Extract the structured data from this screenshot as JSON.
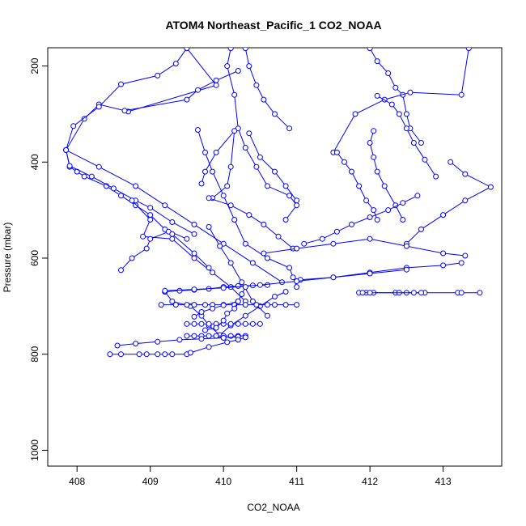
{
  "chart_data": {
    "type": "line",
    "title": "ATOM4 Northeast_Pacific_1 CO2_NOAA",
    "xlabel": "CO2_NOAA",
    "ylabel": "Pressure (mbar)",
    "xlim": [
      407.6,
      413.8
    ],
    "ylim": [
      1033,
      162
    ],
    "y_reversed": true,
    "x_ticks": [
      408,
      409,
      410,
      411,
      412,
      413
    ],
    "y_ticks": [
      200,
      400,
      600,
      800,
      1000
    ],
    "color": "#0000ff",
    "grid": false,
    "series": [
      {
        "x": [
          409.5,
          409.9,
          408.7,
          408.3,
          408.1,
          407.85,
          407.9,
          408.0,
          408.1,
          408.4,
          408.6,
          408.8,
          409.0,
          409.2,
          409.5
        ],
        "y": [
          163,
          240,
          295,
          280,
          310,
          375,
          410,
          420,
          430,
          450,
          470,
          490,
          510,
          540,
          560
        ]
      },
      {
        "x": [
          409.5,
          409.35,
          409.1,
          408.6,
          408.3,
          407.95,
          407.85,
          407.9,
          408.2,
          408.5,
          408.8,
          409.0,
          409.3,
          409.6
        ],
        "y": [
          163,
          195,
          220,
          238,
          285,
          325,
          375,
          408,
          430,
          455,
          480,
          495,
          525,
          550
        ]
      },
      {
        "x": [
          408.65,
          409.5,
          409.65,
          409.9,
          410.2
        ],
        "y": [
          293,
          270,
          250,
          230,
          210
        ]
      },
      {
        "x": [
          408.75,
          409.0,
          408.9,
          409.3,
          409.6,
          409.85,
          410.1,
          410.3
        ],
        "y": [
          480,
          520,
          555,
          560,
          600,
          630,
          660,
          690
        ]
      },
      {
        "x": [
          408.6,
          408.75,
          408.95,
          409.0,
          409.25,
          409.3,
          409.6,
          409.8
        ],
        "y": [
          625,
          600,
          580,
          560,
          545,
          550,
          590,
          620
        ]
      },
      {
        "x": [
          407.85,
          408.3,
          408.8,
          409.2,
          409.6,
          410.0,
          410.4,
          410.8
        ],
        "y": [
          375,
          410,
          450,
          490,
          530,
          570,
          610,
          650
        ]
      },
      {
        "x": [
          410.1,
          410.05,
          410.15,
          410.2,
          410.3,
          410.45,
          410.6,
          410.9,
          411.0,
          410.85
        ],
        "y": [
          163,
          200,
          260,
          330,
          370,
          410,
          450,
          470,
          490,
          520
        ]
      },
      {
        "x": [
          409.2,
          409.3,
          409.55,
          409.7,
          409.8,
          409.95,
          410.1,
          410.3,
          410.5,
          410.7,
          410.85
        ],
        "y": [
          670,
          690,
          700,
          720,
          740,
          760,
          740,
          720,
          700,
          680,
          670
        ]
      },
      {
        "x": [
          410.3,
          410.35,
          410.45,
          410.55,
          410.7,
          410.9
        ],
        "y": [
          163,
          200,
          240,
          270,
          300,
          330
        ]
      },
      {
        "x": [
          409.65,
          409.75,
          409.85,
          410.0,
          410.15,
          410.3,
          410.6,
          410.9,
          410.95,
          411.0
        ],
        "y": [
          333,
          380,
          420,
          470,
          520,
          570,
          600,
          620,
          640,
          660
        ]
      },
      {
        "x": [
          409.85,
          410.05,
          410.1,
          410.15,
          409.9,
          409.75,
          409.7
        ],
        "y": [
          475,
          450,
          410,
          335,
          380,
          420,
          445
        ]
      },
      {
        "x": [
          409.8,
          409.95,
          410.1,
          410.25,
          410.4,
          410.6
        ],
        "y": [
          535,
          575,
          610,
          650,
          690,
          720
        ]
      },
      {
        "x": [
          409.8,
          410.1,
          410.35,
          410.55,
          410.75,
          410.95
        ],
        "y": [
          475,
          490,
          510,
          530,
          555,
          580
        ]
      },
      {
        "x": [
          410.35,
          410.5,
          410.7,
          410.85,
          411.0
        ],
        "y": [
          340,
          390,
          420,
          450,
          480
        ]
      },
      {
        "x": [
          412.0,
          412.1,
          412.25,
          412.35,
          412.45,
          412.5,
          412.55,
          412.7
        ],
        "y": [
          163,
          190,
          215,
          245,
          260,
          300,
          330,
          360
        ]
      },
      {
        "x": [
          413.35,
          413.25,
          412.55,
          412.2,
          411.8,
          411.5
        ],
        "y": [
          163,
          260,
          255,
          270,
          300,
          380
        ]
      },
      {
        "x": [
          412.1,
          412.3,
          412.4,
          412.5,
          412.6,
          412.75,
          412.9
        ],
        "y": [
          262,
          280,
          300,
          330,
          360,
          395,
          430
        ]
      },
      {
        "x": [
          412.05,
          412.0,
          412.05,
          412.1,
          412.2,
          412.35,
          412.45
        ],
        "y": [
          335,
          360,
          390,
          420,
          450,
          490,
          520
        ]
      },
      {
        "x": [
          411.55,
          411.65,
          411.75,
          411.85,
          411.95,
          412.05,
          412.1
        ],
        "y": [
          380,
          400,
          420,
          450,
          480,
          500,
          520
        ]
      },
      {
        "x": [
          413.1,
          413.3,
          413.65,
          413.3,
          413.0,
          412.7,
          412.5
        ],
        "y": [
          400,
          425,
          452,
          480,
          510,
          540,
          570
        ]
      },
      {
        "x": [
          411.1,
          411.35,
          411.55,
          411.75,
          412.0,
          412.25,
          412.45,
          412.65
        ],
        "y": [
          570,
          560,
          545,
          530,
          515,
          500,
          485,
          470
        ]
      },
      {
        "x": [
          410.55,
          411.0,
          411.5,
          412.0,
          412.5,
          413.0,
          413.3
        ],
        "y": [
          590,
          580,
          570,
          560,
          575,
          590,
          595
        ]
      },
      {
        "x": [
          411.05,
          411.5,
          412.0,
          412.5,
          413.0,
          413.25
        ],
        "y": [
          645,
          640,
          630,
          620,
          615,
          610
        ]
      },
      {
        "x": [
          411.95,
          412.05,
          412.35,
          412.4,
          412.5,
          412.75,
          413.2,
          413.25,
          413.5
        ],
        "y": [
          672,
          672,
          672,
          672,
          672,
          672,
          672,
          672,
          672
        ]
      },
      {
        "x": [
          411.85,
          411.9,
          412.0,
          412.6,
          412.7
        ],
        "y": [
          672,
          672,
          672,
          672,
          672
        ]
      },
      {
        "x": [
          409.15,
          409.35,
          409.5,
          409.6,
          409.75,
          409.85,
          410.0,
          410.15,
          410.3,
          410.45,
          410.6,
          410.7,
          410.85,
          411.0
        ],
        "y": [
          697,
          697,
          697,
          697,
          697,
          697,
          697,
          697,
          697,
          697,
          697,
          697,
          697,
          697
        ]
      },
      {
        "x": [
          409.5,
          409.6,
          409.7,
          409.8,
          409.9,
          410.0,
          410.1,
          410.2,
          410.3,
          410.4,
          410.5
        ],
        "y": [
          737,
          737,
          737,
          737,
          737,
          737,
          737,
          737,
          737,
          737,
          737
        ]
      },
      {
        "x": [
          409.5,
          409.6,
          409.7,
          409.8,
          409.9,
          410.0,
          410.1,
          410.2,
          410.3
        ],
        "y": [
          762,
          762,
          762,
          762,
          762,
          762,
          762,
          762,
          762
        ]
      },
      {
        "x": [
          408.45,
          408.6,
          408.85,
          408.95,
          409.1,
          409.2,
          409.3,
          409.5
        ],
        "y": [
          800,
          800,
          800,
          800,
          800,
          800,
          800,
          800
        ]
      },
      {
        "x": [
          408.55,
          408.8,
          409.1,
          409.4,
          409.7,
          410.0,
          410.2
        ],
        "y": [
          782,
          778,
          774,
          770,
          768,
          766,
          764
        ]
      },
      {
        "x": [
          409.55,
          409.8,
          410.05,
          410.2,
          410.3
        ],
        "y": [
          797,
          785,
          775,
          770,
          765
        ]
      },
      {
        "x": [
          409.2,
          409.4,
          409.6,
          409.8,
          410.0,
          410.2,
          410.4,
          410.6
        ],
        "y": [
          670,
          668,
          666,
          664,
          660,
          658,
          657,
          656
        ]
      },
      {
        "x": [
          409.2,
          409.6,
          410.0,
          410.5,
          411.0,
          411.5,
          412.0,
          412.5
        ],
        "y": [
          668,
          665,
          662,
          656,
          648,
          640,
          632,
          624
        ]
      },
      {
        "x": [
          409.75,
          409.9,
          410.0,
          410.05,
          410.15,
          410.2,
          410.25,
          410.3
        ],
        "y": [
          750,
          745,
          730,
          715,
          705,
          690,
          675,
          660
        ]
      },
      {
        "x": [
          409.6,
          409.7,
          409.85,
          410.0,
          410.2
        ],
        "y": [
          722,
          712,
          705,
          698,
          690
        ]
      }
    ]
  }
}
